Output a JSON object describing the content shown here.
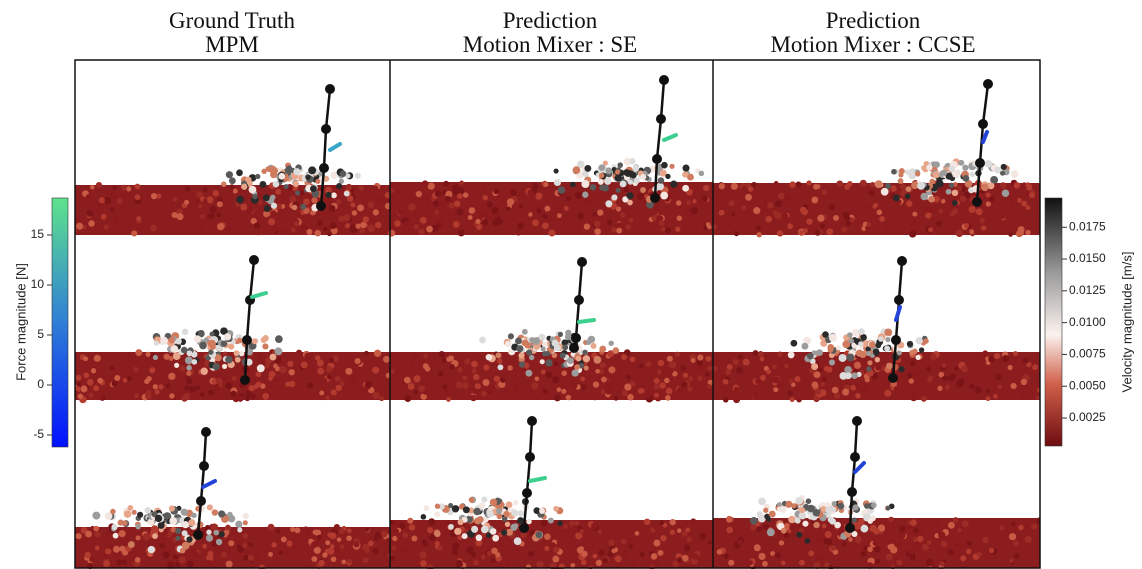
{
  "columns": [
    {
      "title": "Ground Truth",
      "subtitle": "MPM"
    },
    {
      "title": "Prediction",
      "subtitle": "Motion Mixer : SE"
    },
    {
      "title": "Prediction",
      "subtitle": "Motion Mixer : CCSE"
    }
  ],
  "force_colorbar": {
    "label": "Force magnitude [N]",
    "lim": [
      -6.2,
      18.7
    ],
    "ticks": [
      -5,
      0,
      5,
      10,
      15
    ]
  },
  "velocity_colorbar": {
    "label": "Velocity magnitude [m/s]",
    "lim": [
      0.0003,
      0.0198
    ],
    "ticks": [
      0.0025,
      {
        "value": 0.005,
        "label": "0.0050"
      },
      0.0075,
      {
        "value": 0.01,
        "label": "0.0100"
      },
      0.0125,
      {
        "value": 0.015,
        "label": "0.0150"
      },
      0.0175
    ]
  }
}
